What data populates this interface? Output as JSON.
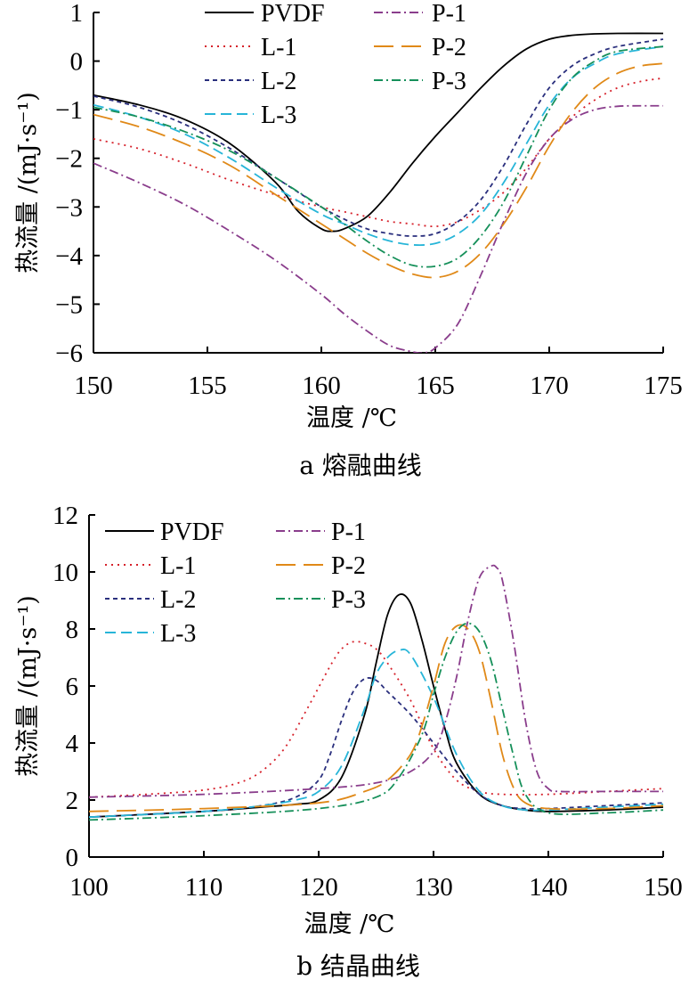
{
  "chart_data": [
    {
      "id": "melt",
      "type": "line",
      "caption": "a 熔融曲线",
      "xlabel": "温度 /℃",
      "ylabel": "热流量 /(mJ·s⁻¹)",
      "xlim": [
        150,
        175
      ],
      "ylim": [
        -6,
        1
      ],
      "xticks": [
        150,
        155,
        160,
        165,
        170,
        175
      ],
      "yticks": [
        1,
        0,
        -1,
        -2,
        -3,
        -4,
        -5,
        -6
      ],
      "xtick_labels": [
        "150",
        "155",
        "160",
        "165",
        "170",
        "175"
      ],
      "ytick_labels": [
        "1",
        "0",
        "−1",
        "−2",
        "−3",
        "−4",
        "−5",
        "−6"
      ],
      "series": [
        {
          "name": "PVDF",
          "color": "#000000",
          "dash": "",
          "x": [
            150,
            152,
            154,
            156,
            158,
            159,
            160,
            160.5,
            161,
            162,
            163,
            164,
            165,
            166,
            167,
            168,
            169,
            170,
            171,
            172,
            173,
            175
          ],
          "y": [
            -0.7,
            -0.9,
            -1.2,
            -1.7,
            -2.5,
            -3.1,
            -3.45,
            -3.5,
            -3.45,
            -3.2,
            -2.7,
            -2.1,
            -1.55,
            -1.05,
            -0.55,
            -0.1,
            0.25,
            0.45,
            0.53,
            0.56,
            0.57,
            0.57
          ]
        },
        {
          "name": "L-1",
          "color": "#d6202a",
          "dash": "2,5",
          "x": [
            150,
            152,
            154,
            156,
            158,
            160,
            161,
            162,
            163,
            164,
            165,
            166,
            167,
            168,
            169,
            170,
            171,
            172,
            173,
            174,
            175
          ],
          "y": [
            -1.6,
            -1.8,
            -2.1,
            -2.45,
            -2.75,
            -3.0,
            -3.1,
            -3.2,
            -3.3,
            -3.35,
            -3.4,
            -3.3,
            -3.05,
            -2.7,
            -2.2,
            -1.6,
            -1.15,
            -0.8,
            -0.55,
            -0.42,
            -0.35
          ]
        },
        {
          "name": "L-2",
          "color": "#2a2f7d",
          "dash": "5,4",
          "x": [
            150,
            152,
            154,
            156,
            158,
            160,
            161,
            162,
            163,
            164,
            165,
            166,
            167,
            168,
            169,
            170,
            171,
            172,
            173,
            175
          ],
          "y": [
            -0.72,
            -0.95,
            -1.3,
            -1.8,
            -2.4,
            -3.0,
            -3.25,
            -3.45,
            -3.55,
            -3.6,
            -3.55,
            -3.3,
            -2.85,
            -2.15,
            -1.3,
            -0.55,
            -0.1,
            0.15,
            0.3,
            0.45
          ]
        },
        {
          "name": "L-3",
          "color": "#27b5d8",
          "dash": "12,6",
          "x": [
            150,
            152,
            154,
            156,
            158,
            160,
            161,
            162,
            163,
            164,
            165,
            166,
            167,
            168,
            169,
            170,
            171,
            172,
            173,
            175
          ],
          "y": [
            -0.9,
            -1.15,
            -1.5,
            -2.0,
            -2.6,
            -3.15,
            -3.35,
            -3.55,
            -3.7,
            -3.78,
            -3.75,
            -3.55,
            -3.15,
            -2.5,
            -1.7,
            -0.9,
            -0.35,
            -0.05,
            0.15,
            0.3
          ]
        },
        {
          "name": "P-1",
          "color": "#8a3d8c",
          "dash": "10,4,2,4",
          "x": [
            150,
            152,
            154,
            156,
            158,
            160,
            161,
            162,
            163,
            164,
            164.5,
            165,
            166,
            167,
            168,
            169,
            170,
            171,
            172,
            173,
            174,
            175
          ],
          "y": [
            -2.1,
            -2.5,
            -2.95,
            -3.5,
            -4.1,
            -4.8,
            -5.2,
            -5.55,
            -5.85,
            -5.98,
            -6.0,
            -5.9,
            -5.4,
            -4.4,
            -3.3,
            -2.3,
            -1.6,
            -1.2,
            -1.0,
            -0.93,
            -0.92,
            -0.92
          ]
        },
        {
          "name": "P-2",
          "color": "#e08918",
          "dash": "22,9",
          "x": [
            150,
            152,
            154,
            156,
            158,
            160,
            161,
            162,
            163,
            164,
            165,
            166,
            167,
            168,
            169,
            170,
            171,
            172,
            173,
            174,
            175
          ],
          "y": [
            -1.1,
            -1.35,
            -1.7,
            -2.15,
            -2.75,
            -3.35,
            -3.65,
            -3.95,
            -4.2,
            -4.38,
            -4.45,
            -4.32,
            -3.95,
            -3.35,
            -2.6,
            -1.75,
            -1.05,
            -0.55,
            -0.25,
            -0.1,
            -0.05
          ]
        },
        {
          "name": "P-3",
          "color": "#16905a",
          "dash": "10,4,2,4",
          "x": [
            150,
            152,
            154,
            156,
            158,
            160,
            161,
            162,
            163,
            164,
            165,
            166,
            167,
            168,
            169,
            170,
            171,
            172,
            173,
            175
          ],
          "y": [
            -0.95,
            -1.15,
            -1.45,
            -1.85,
            -2.4,
            -3.0,
            -3.35,
            -3.7,
            -4.0,
            -4.2,
            -4.22,
            -4.05,
            -3.6,
            -2.9,
            -1.95,
            -1.0,
            -0.35,
            0.0,
            0.2,
            0.3
          ]
        }
      ],
      "legend": {
        "left": [
          "PVDF",
          "L-1",
          "L-2",
          "L-3"
        ],
        "right": [
          "P-1",
          "P-2",
          "P-3"
        ]
      }
    },
    {
      "id": "cryst",
      "type": "line",
      "caption": "b 结晶曲线",
      "xlabel": "温度 /℃",
      "ylabel": "热流量 /(mJ·s⁻¹)",
      "xlim": [
        100,
        150
      ],
      "ylim": [
        0,
        12
      ],
      "xticks": [
        100,
        110,
        120,
        130,
        140,
        150
      ],
      "yticks": [
        0,
        2,
        4,
        6,
        8,
        10,
        12
      ],
      "xtick_labels": [
        "100",
        "110",
        "120",
        "130",
        "140",
        "150"
      ],
      "ytick_labels": [
        "0",
        "2",
        "4",
        "6",
        "8",
        "10",
        "12"
      ],
      "series": [
        {
          "name": "PVDF",
          "color": "#000000",
          "dash": "",
          "x": [
            100,
            110,
            115,
            118,
            120,
            122,
            124,
            125,
            126,
            127,
            128,
            129,
            130,
            131,
            132,
            134,
            136,
            138,
            140,
            145,
            150
          ],
          "y": [
            1.4,
            1.6,
            1.75,
            1.85,
            2.0,
            2.8,
            5.0,
            6.8,
            8.5,
            9.2,
            8.9,
            7.6,
            6.0,
            4.5,
            3.3,
            2.2,
            1.8,
            1.65,
            1.6,
            1.65,
            1.75
          ]
        },
        {
          "name": "L-1",
          "color": "#d6202a",
          "dash": "2,5",
          "x": [
            100,
            105,
            110,
            113,
            115,
            117,
            119,
            121,
            122,
            123,
            124,
            125,
            126,
            128,
            130,
            132,
            134,
            136,
            140,
            145,
            150
          ],
          "y": [
            2.1,
            2.2,
            2.35,
            2.6,
            3.0,
            3.8,
            5.2,
            6.7,
            7.3,
            7.55,
            7.5,
            7.3,
            6.8,
            5.5,
            3.8,
            2.7,
            2.3,
            2.2,
            2.2,
            2.3,
            2.4
          ]
        },
        {
          "name": "L-2",
          "color": "#2a2f7d",
          "dash": "5,4",
          "x": [
            100,
            110,
            115,
            118,
            120,
            121,
            122,
            123,
            124,
            125,
            126,
            128,
            130,
            132,
            134,
            136,
            138,
            140,
            145,
            150
          ],
          "y": [
            1.4,
            1.6,
            1.8,
            2.1,
            2.7,
            3.6,
            4.8,
            5.8,
            6.25,
            6.2,
            5.8,
            5.0,
            4.0,
            3.0,
            2.2,
            1.8,
            1.7,
            1.7,
            1.8,
            1.9
          ]
        },
        {
          "name": "L-3",
          "color": "#27b5d8",
          "dash": "12,6",
          "x": [
            100,
            110,
            115,
            118,
            120,
            122,
            124,
            125,
            126,
            127,
            128,
            130,
            132,
            134,
            136,
            138,
            140,
            145,
            150
          ],
          "y": [
            1.4,
            1.6,
            1.8,
            2.0,
            2.3,
            3.2,
            5.2,
            6.4,
            7.0,
            7.25,
            7.1,
            5.6,
            3.6,
            2.3,
            1.8,
            1.65,
            1.65,
            1.75,
            1.85
          ]
        },
        {
          "name": "P-1",
          "color": "#8a3d8c",
          "dash": "10,4,2,4",
          "x": [
            100,
            110,
            120,
            125,
            128,
            130,
            131,
            132,
            133,
            134,
            135,
            135.5,
            136,
            137,
            138,
            139,
            140,
            141,
            145,
            150
          ],
          "y": [
            2.1,
            2.2,
            2.4,
            2.6,
            3.0,
            3.7,
            4.7,
            6.3,
            8.3,
            9.8,
            10.2,
            10.15,
            9.7,
            7.5,
            4.8,
            3.0,
            2.4,
            2.3,
            2.3,
            2.3
          ]
        },
        {
          "name": "P-2",
          "color": "#e08918",
          "dash": "22,9",
          "x": [
            100,
            110,
            120,
            124,
            126,
            128,
            129,
            130,
            131,
            132,
            133,
            134,
            135,
            136,
            137,
            138,
            140,
            145,
            150
          ],
          "y": [
            1.6,
            1.7,
            1.9,
            2.3,
            2.7,
            3.6,
            4.6,
            6.0,
            7.5,
            8.1,
            8.0,
            7.2,
            5.5,
            3.6,
            2.4,
            1.9,
            1.7,
            1.7,
            1.8
          ]
        },
        {
          "name": "P-3",
          "color": "#16905a",
          "dash": "10,4,2,4",
          "x": [
            100,
            110,
            120,
            125,
            127,
            129,
            130,
            131,
            132,
            133,
            134,
            135,
            136,
            137,
            138,
            140,
            145,
            150
          ],
          "y": [
            1.3,
            1.45,
            1.7,
            2.1,
            2.8,
            4.3,
            5.7,
            7.0,
            7.9,
            8.2,
            7.9,
            6.9,
            5.2,
            3.5,
            2.2,
            1.55,
            1.55,
            1.65
          ]
        }
      ],
      "legend": {
        "left": [
          "PVDF",
          "L-1",
          "L-2",
          "L-3"
        ],
        "right": [
          "P-1",
          "P-2",
          "P-3"
        ]
      }
    }
  ]
}
